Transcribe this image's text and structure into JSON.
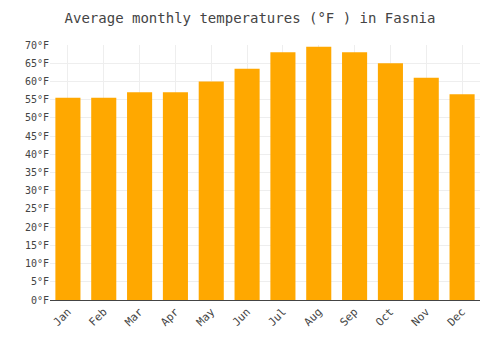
{
  "chart_data": {
    "type": "bar",
    "title": "Average monthly temperatures (°F ) in Fasnia",
    "categories": [
      "Jan",
      "Feb",
      "Mar",
      "Apr",
      "May",
      "Jun",
      "Jul",
      "Aug",
      "Sep",
      "Oct",
      "Nov",
      "Dec"
    ],
    "values": [
      55.5,
      55.5,
      57,
      57,
      60,
      63.5,
      68,
      69.5,
      68,
      65,
      61,
      56.5
    ],
    "color": "#FFA800",
    "ylim": [
      0,
      70
    ],
    "yticks": [
      {
        "value": 0,
        "label": "0°F"
      },
      {
        "value": 5,
        "label": "5°F"
      },
      {
        "value": 10,
        "label": "10°F"
      },
      {
        "value": 15,
        "label": "15°F"
      },
      {
        "value": 20,
        "label": "20°F"
      },
      {
        "value": 25,
        "label": "25°F"
      },
      {
        "value": 30,
        "label": "30°F"
      },
      {
        "value": 35,
        "label": "35°F"
      },
      {
        "value": 40,
        "label": "40°F"
      },
      {
        "value": 45,
        "label": "45°F"
      },
      {
        "value": 50,
        "label": "50°F"
      },
      {
        "value": 55,
        "label": "55°F"
      },
      {
        "value": 60,
        "label": "60°F"
      },
      {
        "value": 65,
        "label": "65°F"
      },
      {
        "value": 70,
        "label": "70°F"
      }
    ],
    "grid": true
  }
}
